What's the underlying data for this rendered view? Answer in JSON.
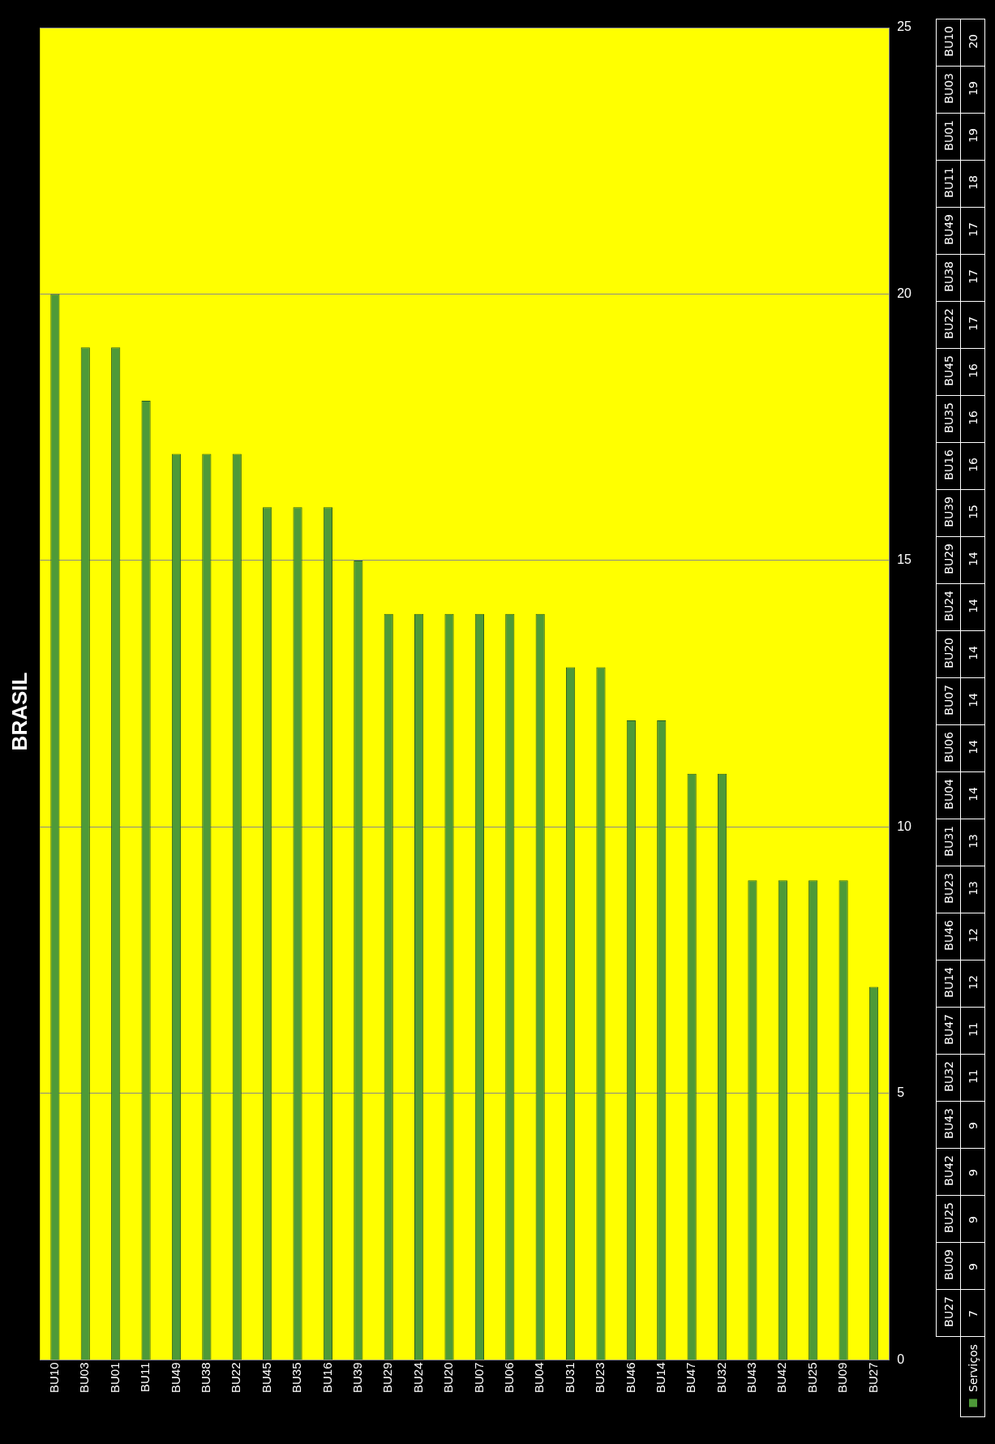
{
  "chart_data": {
    "type": "bar",
    "title": "BRASIL",
    "categories": [
      "BU10",
      "BU03",
      "BU01",
      "BU11",
      "BU49",
      "BU38",
      "BU22",
      "BU45",
      "BU35",
      "BU16",
      "BU39",
      "BU29",
      "BU24",
      "BU20",
      "BU07",
      "BU06",
      "BU04",
      "BU31",
      "BU23",
      "BU46",
      "BU14",
      "BU47",
      "BU32",
      "BU43",
      "BU42",
      "BU25",
      "BU09",
      "BU27"
    ],
    "series": [
      {
        "name": "Serviços",
        "color": "#4e9a38",
        "values": [
          20,
          19,
          19,
          18,
          17,
          17,
          17,
          16,
          16,
          16,
          15,
          14,
          14,
          14,
          14,
          14,
          14,
          13,
          13,
          12,
          12,
          11,
          11,
          9,
          9,
          9,
          9,
          7
        ]
      }
    ],
    "value_labels": [
      "20",
      "19",
      "19",
      "18",
      "17",
      "17",
      "17",
      "16",
      "16",
      "16",
      "15",
      "14",
      "14",
      "14",
      "14",
      "14",
      "14",
      "13",
      "13",
      "12",
      "12",
      "11",
      "11",
      "9",
      "9",
      "9",
      "9",
      "7"
    ],
    "ylim": [
      0,
      25
    ],
    "yticks": [
      0,
      5,
      10,
      15,
      20,
      25
    ],
    "grid": "y",
    "legend": "bottom right"
  }
}
